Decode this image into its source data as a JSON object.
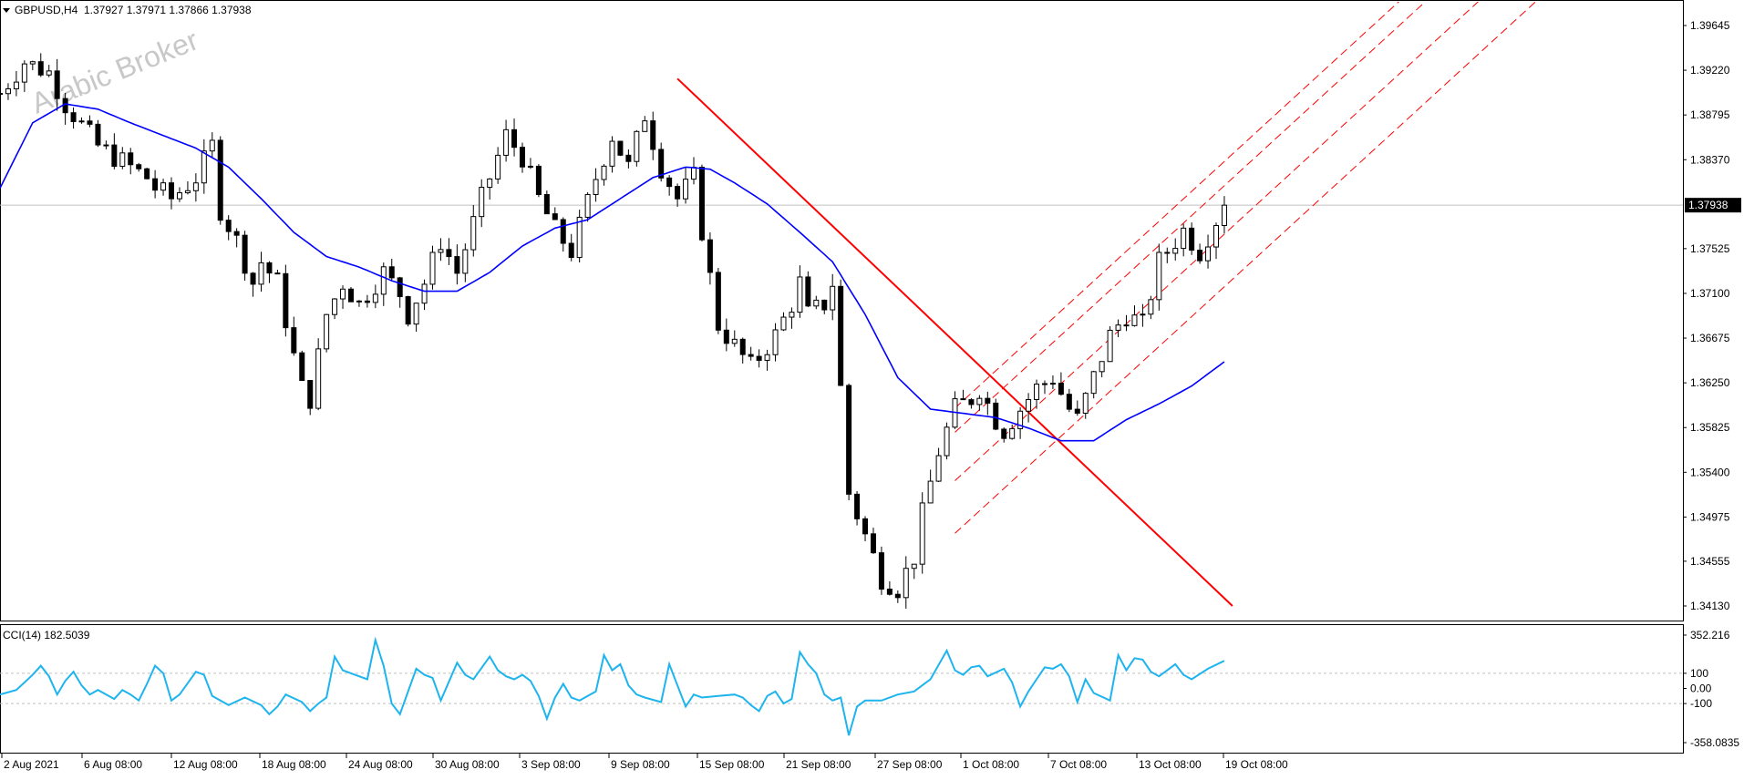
{
  "header": {
    "symbol_label": "GBPUSD,H4",
    "ohlc_label": "1.37927 1.37971 1.37866 1.37938",
    "watermark": "Arabic Broker"
  },
  "price_axis": {
    "ticks": [
      "1.39645",
      "1.39220",
      "1.38795",
      "1.38370",
      "1.37525",
      "1.37100",
      "1.36675",
      "1.36250",
      "1.35825",
      "1.35400",
      "1.34975",
      "1.34555",
      "1.34130"
    ],
    "current_label": "1.37938"
  },
  "cci_panel": {
    "label": "CCI(14) 182.5039",
    "ticks": [
      "352.216",
      "100",
      "0.00",
      "-100",
      "-358.0835"
    ]
  },
  "time_axis": {
    "ticks": [
      "2 Aug 2021",
      "6 Aug 08:00",
      "12 Aug 08:00",
      "18 Aug 08:00",
      "24 Aug 08:00",
      "30 Aug 08:00",
      "3 Sep 08:00",
      "9 Sep 08:00",
      "15 Sep 08:00",
      "21 Sep 08:00",
      "27 Sep 08:00",
      "1 Oct 08:00",
      "7 Oct 08:00",
      "13 Oct 08:00",
      "19 Oct 08:00"
    ]
  },
  "colors": {
    "candle": "#000000",
    "ma": "#0000ff",
    "trendline": "#ff0000",
    "channel": "#ff0000",
    "cci": "#1eb4ee",
    "grid": "#c0c0c0"
  },
  "chart_data": {
    "type": "candlestick",
    "symbol": "GBPUSD",
    "timeframe": "H4",
    "ylim": [
      1.3413,
      1.3985
    ],
    "last_price": 1.37938,
    "price_path": [
      [
        0,
        1.39
      ],
      [
        3,
        1.393
      ],
      [
        6,
        1.392
      ],
      [
        8,
        1.389
      ],
      [
        10,
        1.387
      ],
      [
        12,
        1.385
      ],
      [
        14,
        1.384
      ],
      [
        16,
        1.383
      ],
      [
        18,
        1.382
      ],
      [
        19,
        1.381
      ],
      [
        21,
        1.38
      ],
      [
        24,
        1.382
      ],
      [
        26,
        1.385
      ],
      [
        27,
        1.379
      ],
      [
        29,
        1.376
      ],
      [
        31,
        1.372
      ],
      [
        32,
        1.374
      ],
      [
        34,
        1.372
      ],
      [
        36,
        1.365
      ],
      [
        37,
        1.362
      ],
      [
        38,
        1.361
      ],
      [
        40,
        1.369
      ],
      [
        42,
        1.372
      ],
      [
        44,
        1.37
      ],
      [
        47,
        1.373
      ],
      [
        49,
        1.371
      ],
      [
        50,
        1.369
      ],
      [
        52,
        1.372
      ],
      [
        54,
        1.376
      ],
      [
        56,
        1.373
      ],
      [
        59,
        1.38
      ],
      [
        62,
        1.386
      ],
      [
        64,
        1.384
      ],
      [
        66,
        1.38
      ],
      [
        68,
        1.377
      ],
      [
        70,
        1.375
      ],
      [
        73,
        1.382
      ],
      [
        75,
        1.386
      ],
      [
        77,
        1.383
      ],
      [
        79,
        1.388
      ],
      [
        81,
        1.383
      ],
      [
        83,
        1.38
      ],
      [
        85,
        1.382
      ],
      [
        86,
        1.377
      ],
      [
        88,
        1.368
      ],
      [
        90,
        1.366
      ],
      [
        92,
        1.364
      ],
      [
        95,
        1.367
      ],
      [
        97,
        1.37
      ],
      [
        98,
        1.372
      ],
      [
        99,
        1.369
      ],
      [
        101,
        1.37
      ],
      [
        102,
        1.372
      ],
      [
        104,
        1.352
      ],
      [
        106,
        1.348
      ],
      [
        108,
        1.344
      ],
      [
        110,
        1.343
      ],
      [
        112,
        1.346
      ],
      [
        113,
        1.35
      ],
      [
        115,
        1.356
      ],
      [
        117,
        1.36
      ],
      [
        119,
        1.361
      ],
      [
        120,
        1.362
      ],
      [
        122,
        1.359
      ],
      [
        123,
        1.358
      ],
      [
        125,
        1.36
      ],
      [
        127,
        1.362
      ],
      [
        129,
        1.363
      ],
      [
        131,
        1.36
      ],
      [
        132,
        1.359
      ],
      [
        134,
        1.363
      ],
      [
        136,
        1.367
      ],
      [
        138,
        1.369
      ],
      [
        140,
        1.368
      ],
      [
        142,
        1.374
      ],
      [
        144,
        1.376
      ],
      [
        145,
        1.377
      ],
      [
        147,
        1.375
      ],
      [
        149,
        1.378
      ],
      [
        150,
        1.3794
      ]
    ],
    "moving_average": [
      [
        0,
        1.381
      ],
      [
        4,
        1.3872
      ],
      [
        8,
        1.389
      ],
      [
        12,
        1.3885
      ],
      [
        16,
        1.3872
      ],
      [
        20,
        1.386
      ],
      [
        24,
        1.3848
      ],
      [
        28,
        1.383
      ],
      [
        32,
        1.38
      ],
      [
        36,
        1.3768
      ],
      [
        40,
        1.3745
      ],
      [
        44,
        1.3735
      ],
      [
        48,
        1.3722
      ],
      [
        52,
        1.3712
      ],
      [
        56,
        1.3712
      ],
      [
        60,
        1.373
      ],
      [
        64,
        1.3755
      ],
      [
        68,
        1.3772
      ],
      [
        72,
        1.378
      ],
      [
        76,
        1.38
      ],
      [
        80,
        1.382
      ],
      [
        84,
        1.383
      ],
      [
        87,
        1.3828
      ],
      [
        90,
        1.3815
      ],
      [
        94,
        1.3795
      ],
      [
        98,
        1.3768
      ],
      [
        102,
        1.374
      ],
      [
        106,
        1.369
      ],
      [
        110,
        1.363
      ],
      [
        114,
        1.36
      ],
      [
        118,
        1.3596
      ],
      [
        122,
        1.3592
      ],
      [
        126,
        1.3582
      ],
      [
        130,
        1.357
      ],
      [
        134,
        1.357
      ],
      [
        138,
        1.359
      ],
      [
        142,
        1.3605
      ],
      [
        146,
        1.3622
      ],
      [
        150,
        1.3645
      ]
    ],
    "trendline": {
      "from": [
        83,
        1.3914
      ],
      "to": [
        151,
        1.3413
      ]
    },
    "channel": {
      "anchor_bar": 117,
      "slope_per_bar": 0.00071,
      "offsets": [
        1.3601,
        1.3578,
        1.3532,
        1.3482
      ],
      "extend_to_bar": 196
    },
    "cci": {
      "name": "CCI(14)",
      "ylim": [
        -358.0835,
        352.216
      ],
      "levels": [
        100,
        0,
        -100
      ],
      "path": [
        [
          0,
          -40
        ],
        [
          2,
          -10
        ],
        [
          4,
          90
        ],
        [
          5,
          150
        ],
        [
          6,
          80
        ],
        [
          7,
          -40
        ],
        [
          8,
          50
        ],
        [
          9,
          110
        ],
        [
          10,
          20
        ],
        [
          11,
          -40
        ],
        [
          12,
          -10
        ],
        [
          14,
          -70
        ],
        [
          15,
          -10
        ],
        [
          16,
          -40
        ],
        [
          17,
          -80
        ],
        [
          18,
          30
        ],
        [
          19,
          150
        ],
        [
          20,
          100
        ],
        [
          21,
          -80
        ],
        [
          22,
          -40
        ],
        [
          24,
          110
        ],
        [
          25,
          90
        ],
        [
          26,
          -50
        ],
        [
          28,
          -110
        ],
        [
          30,
          -60
        ],
        [
          32,
          -110
        ],
        [
          33,
          -170
        ],
        [
          34,
          -120
        ],
        [
          35,
          -40
        ],
        [
          37,
          -90
        ],
        [
          38,
          -150
        ],
        [
          39,
          -100
        ],
        [
          40,
          -60
        ],
        [
          41,
          210
        ],
        [
          42,
          120
        ],
        [
          43,
          100
        ],
        [
          44,
          80
        ],
        [
          45,
          60
        ],
        [
          46,
          320
        ],
        [
          47,
          150
        ],
        [
          48,
          -100
        ],
        [
          49,
          -170
        ],
        [
          51,
          130
        ],
        [
          52,
          90
        ],
        [
          53,
          70
        ],
        [
          54,
          -80
        ],
        [
          56,
          170
        ],
        [
          57,
          90
        ],
        [
          58,
          60
        ],
        [
          60,
          210
        ],
        [
          61,
          120
        ],
        [
          62,
          80
        ],
        [
          63,
          60
        ],
        [
          64,
          90
        ],
        [
          65,
          50
        ],
        [
          66,
          -50
        ],
        [
          67,
          -200
        ],
        [
          68,
          -60
        ],
        [
          69,
          30
        ],
        [
          70,
          -60
        ],
        [
          71,
          -80
        ],
        [
          73,
          -20
        ],
        [
          74,
          220
        ],
        [
          75,
          120
        ],
        [
          76,
          160
        ],
        [
          77,
          20
        ],
        [
          78,
          -40
        ],
        [
          79,
          -60
        ],
        [
          81,
          -90
        ],
        [
          82,
          160
        ],
        [
          83,
          20
        ],
        [
          84,
          -120
        ],
        [
          85,
          -40
        ],
        [
          86,
          -60
        ],
        [
          88,
          -50
        ],
        [
          90,
          -40
        ],
        [
          91,
          -60
        ],
        [
          92,
          -110
        ],
        [
          93,
          -150
        ],
        [
          94,
          -50
        ],
        [
          95,
          -20
        ],
        [
          96,
          -100
        ],
        [
          97,
          -70
        ],
        [
          98,
          240
        ],
        [
          99,
          160
        ],
        [
          100,
          100
        ],
        [
          101,
          -40
        ],
        [
          102,
          -80
        ],
        [
          103,
          -60
        ],
        [
          104,
          -310
        ],
        [
          105,
          -120
        ],
        [
          106,
          -80
        ],
        [
          107,
          -80
        ],
        [
          108,
          -80
        ],
        [
          110,
          -40
        ],
        [
          112,
          -20
        ],
        [
          114,
          60
        ],
        [
          116,
          250
        ],
        [
          117,
          120
        ],
        [
          118,
          90
        ],
        [
          119,
          140
        ],
        [
          120,
          150
        ],
        [
          121,
          80
        ],
        [
          123,
          130
        ],
        [
          124,
          40
        ],
        [
          125,
          -120
        ],
        [
          126,
          -20
        ],
        [
          127,
          60
        ],
        [
          128,
          140
        ],
        [
          129,
          130
        ],
        [
          130,
          160
        ],
        [
          131,
          80
        ],
        [
          132,
          -90
        ],
        [
          133,
          60
        ],
        [
          134,
          -30
        ],
        [
          136,
          -80
        ],
        [
          137,
          220
        ],
        [
          138,
          120
        ],
        [
          139,
          200
        ],
        [
          140,
          190
        ],
        [
          141,
          110
        ],
        [
          142,
          80
        ],
        [
          143,
          120
        ],
        [
          144,
          160
        ],
        [
          145,
          90
        ],
        [
          146,
          60
        ],
        [
          148,
          130
        ],
        [
          150,
          182.5
        ]
      ]
    }
  }
}
